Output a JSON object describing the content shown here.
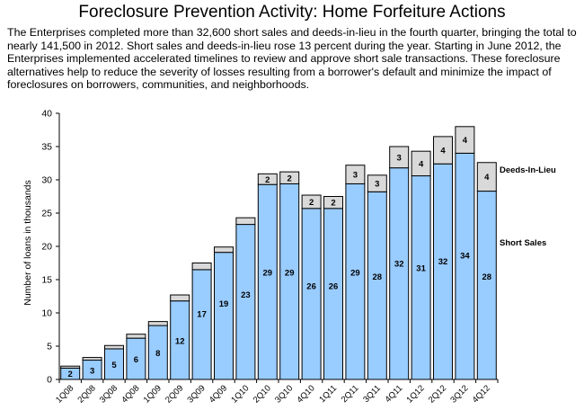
{
  "title": "Foreclosure Prevention Activity: Home Forfeiture Actions",
  "intro": "The Enterprises completed more than 32,600 short sales and deeds-in-lieu in the fourth quarter, bringing the total to nearly 141,500 in 2012. Short sales and deeds-in-lieu rose 13 percent during the year. Starting in June 2012, the Enterprises implemented accelerated timelines to review and approve short sale transactions. These foreclosure alternatives help to reduce the severity of losses resulting from a borrower's default and minimize the impact of foreclosures on borrowers, communities, and neighborhoods.",
  "colors": {
    "short_sales": "#99ccff",
    "deeds_in_lieu": "#d9d9d9",
    "border": "#000000"
  },
  "chart_data": {
    "type": "bar",
    "stacked": true,
    "ylabel": "Number of loans in thousands",
    "xlabel": "",
    "ylim": [
      0,
      40
    ],
    "yticks": [
      0,
      5,
      10,
      15,
      20,
      25,
      30,
      35,
      40
    ],
    "grid": false,
    "legend": "right, labels beside last bar",
    "categories": [
      "1Q08",
      "2Q08",
      "3Q08",
      "4Q08",
      "1Q09",
      "2Q09",
      "3Q09",
      "4Q09",
      "1Q10",
      "2Q10",
      "3Q10",
      "4Q10",
      "1Q11",
      "2Q11",
      "3Q11",
      "4Q11",
      "1Q12",
      "2Q12",
      "3Q12",
      "4Q12"
    ],
    "series": [
      {
        "name": "Short Sales",
        "values": [
          1.7,
          2.9,
          4.6,
          6.2,
          8.1,
          11.8,
          16.5,
          19.1,
          23.3,
          29.3,
          29.4,
          25.7,
          25.7,
          29.4,
          28.2,
          31.8,
          30.6,
          32.4,
          34.0,
          28.3
        ],
        "labels": [
          "2",
          "3",
          "5",
          "6",
          "8",
          "12",
          "17",
          "19",
          "23",
          "29",
          "29",
          "26",
          "26",
          "29",
          "28",
          "32",
          "31",
          "32",
          "34",
          "28"
        ]
      },
      {
        "name": "Deeds-In-Lieu",
        "values": [
          0.3,
          0.4,
          0.5,
          0.6,
          0.6,
          0.9,
          1.0,
          0.8,
          1.0,
          1.6,
          1.8,
          2.0,
          1.8,
          2.8,
          2.5,
          3.2,
          3.7,
          4.1,
          4.0,
          4.3
        ],
        "labels": [
          "",
          "",
          "",
          "",
          "",
          "",
          "",
          "",
          "",
          "2",
          "2",
          "2",
          "2",
          "3",
          "3",
          "3",
          "4",
          "4",
          "4",
          "4"
        ]
      }
    ]
  }
}
